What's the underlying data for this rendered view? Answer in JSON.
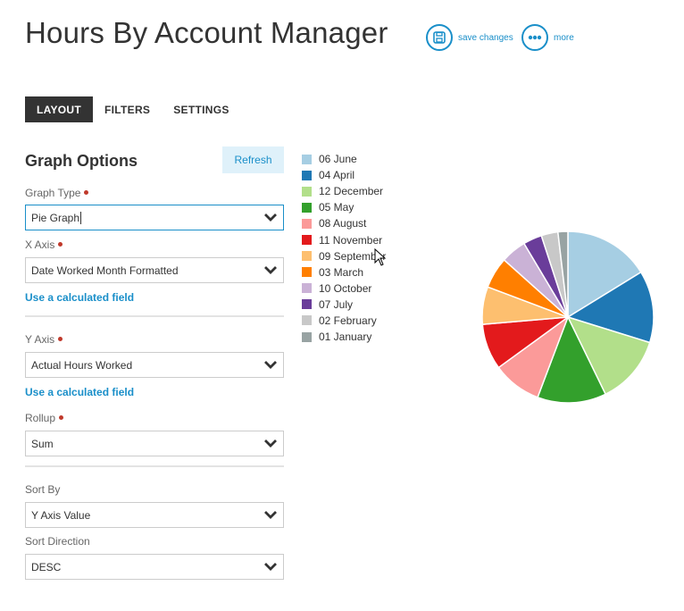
{
  "header": {
    "title": "Hours By Account Manager",
    "save_label": "save changes",
    "more_label": "more"
  },
  "tabs": [
    {
      "label": "LAYOUT",
      "active": true
    },
    {
      "label": "FILTERS",
      "active": false
    },
    {
      "label": "SETTINGS",
      "active": false
    }
  ],
  "options": {
    "title": "Graph Options",
    "refresh_label": "Refresh",
    "graph_type": {
      "label": "Graph Type",
      "value": "Pie Graph"
    },
    "x_axis": {
      "label": "X Axis",
      "value": "Date Worked Month Formatted",
      "calc_link": "Use a calculated field"
    },
    "y_axis": {
      "label": "Y Axis",
      "value": "Actual Hours Worked",
      "calc_link": "Use a calculated field"
    },
    "rollup": {
      "label": "Rollup",
      "value": "Sum"
    },
    "sort_by": {
      "label": "Sort By",
      "value": "Y Axis Value"
    },
    "sort_direction": {
      "label": "Sort Direction",
      "value": "DESC"
    }
  },
  "colors": {
    "accent": "#1a8fc9",
    "required_dot": "#c0392b"
  },
  "chart_data": {
    "type": "pie",
    "legend_position": "left",
    "slices": [
      {
        "label": "06 June",
        "value": 16.5,
        "color": "#a6cee3"
      },
      {
        "label": "04 April",
        "value": 13.8,
        "color": "#1f78b4"
      },
      {
        "label": "12 December",
        "value": 13.2,
        "color": "#b2df8a"
      },
      {
        "label": "05 May",
        "value": 13.2,
        "color": "#33a02c"
      },
      {
        "label": "08 August",
        "value": 9.4,
        "color": "#fb9a99"
      },
      {
        "label": "11 November",
        "value": 8.8,
        "color": "#e31a1c"
      },
      {
        "label": "09 September",
        "value": 7.2,
        "color": "#fdbf6f"
      },
      {
        "label": "03 March",
        "value": 6.0,
        "color": "#ff7f00"
      },
      {
        "label": "10 October",
        "value": 4.9,
        "color": "#cab2d6"
      },
      {
        "label": "07 July",
        "value": 3.6,
        "color": "#6a3d9a"
      },
      {
        "label": "02 February",
        "value": 3.2,
        "color": "#c8c8c8"
      },
      {
        "label": "01 January",
        "value": 1.9,
        "color": "#98a3a3"
      }
    ]
  }
}
